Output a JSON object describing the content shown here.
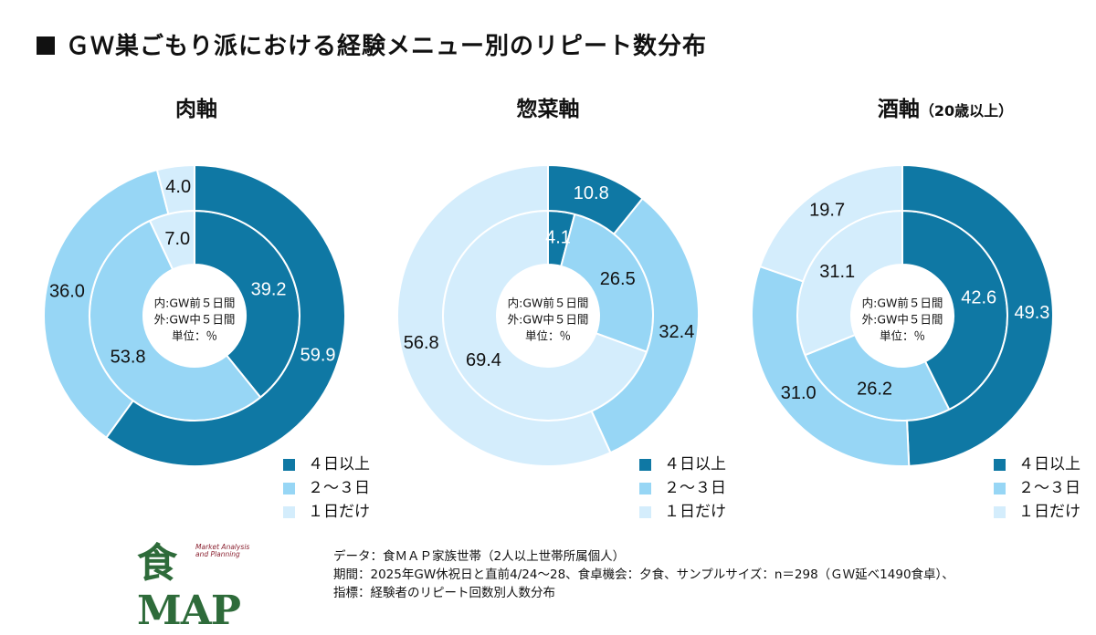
{
  "title": "ＧＷ巣ごもり派における経験メニュー別のリピート数分布",
  "colors": {
    "high": "#0f78a4",
    "mid": "#97d6f5",
    "low": "#d4edfc",
    "text_dark_bg": "#ffffff",
    "text_light_bg": "#111111"
  },
  "legend": [
    "４日以上",
    "２～３日",
    "１日だけ"
  ],
  "center_label": [
    "内:GW前５日間",
    "外:GW中５日間",
    "単位：％"
  ],
  "chart_data": [
    {
      "type": "pie",
      "title": "肉軸",
      "subtitle": "",
      "categories": [
        "４日以上",
        "２～３日",
        "１日だけ"
      ],
      "series": [
        {
          "name": "内:GW前５日間",
          "values": [
            39.2,
            53.8,
            7.0
          ]
        },
        {
          "name": "外:GW中５日間",
          "values": [
            59.9,
            36.0,
            4.0
          ]
        }
      ]
    },
    {
      "type": "pie",
      "title": "惣菜軸",
      "subtitle": "",
      "categories": [
        "４日以上",
        "２～３日",
        "１日だけ"
      ],
      "series": [
        {
          "name": "内:GW前５日間",
          "values": [
            4.1,
            26.5,
            69.4
          ]
        },
        {
          "name": "外:GW中５日間",
          "values": [
            10.8,
            32.4,
            56.8
          ]
        }
      ]
    },
    {
      "type": "pie",
      "title": "酒軸",
      "subtitle": "（20歳以上）",
      "categories": [
        "４日以上",
        "２～３日",
        "１日だけ"
      ],
      "series": [
        {
          "name": "内:GW前５日間",
          "values": [
            42.6,
            26.2,
            31.1
          ]
        },
        {
          "name": "外:GW中５日間",
          "values": [
            49.3,
            31.0,
            19.7
          ]
        }
      ]
    }
  ],
  "footer": {
    "logo_text": "食MAP",
    "logo_tagline": "Market Analysis and Planning",
    "lines": [
      "データ：食ＭＡＰ家族世帯（2人以上世帯所属個人）",
      "期間：2025年GW休祝日と直前4/24～28、食卓機会：夕食、サンプルサイズ：n＝298（ＧＷ延べ1490食卓）、",
      "指標：経験者のリピート回数別人数分布"
    ]
  }
}
